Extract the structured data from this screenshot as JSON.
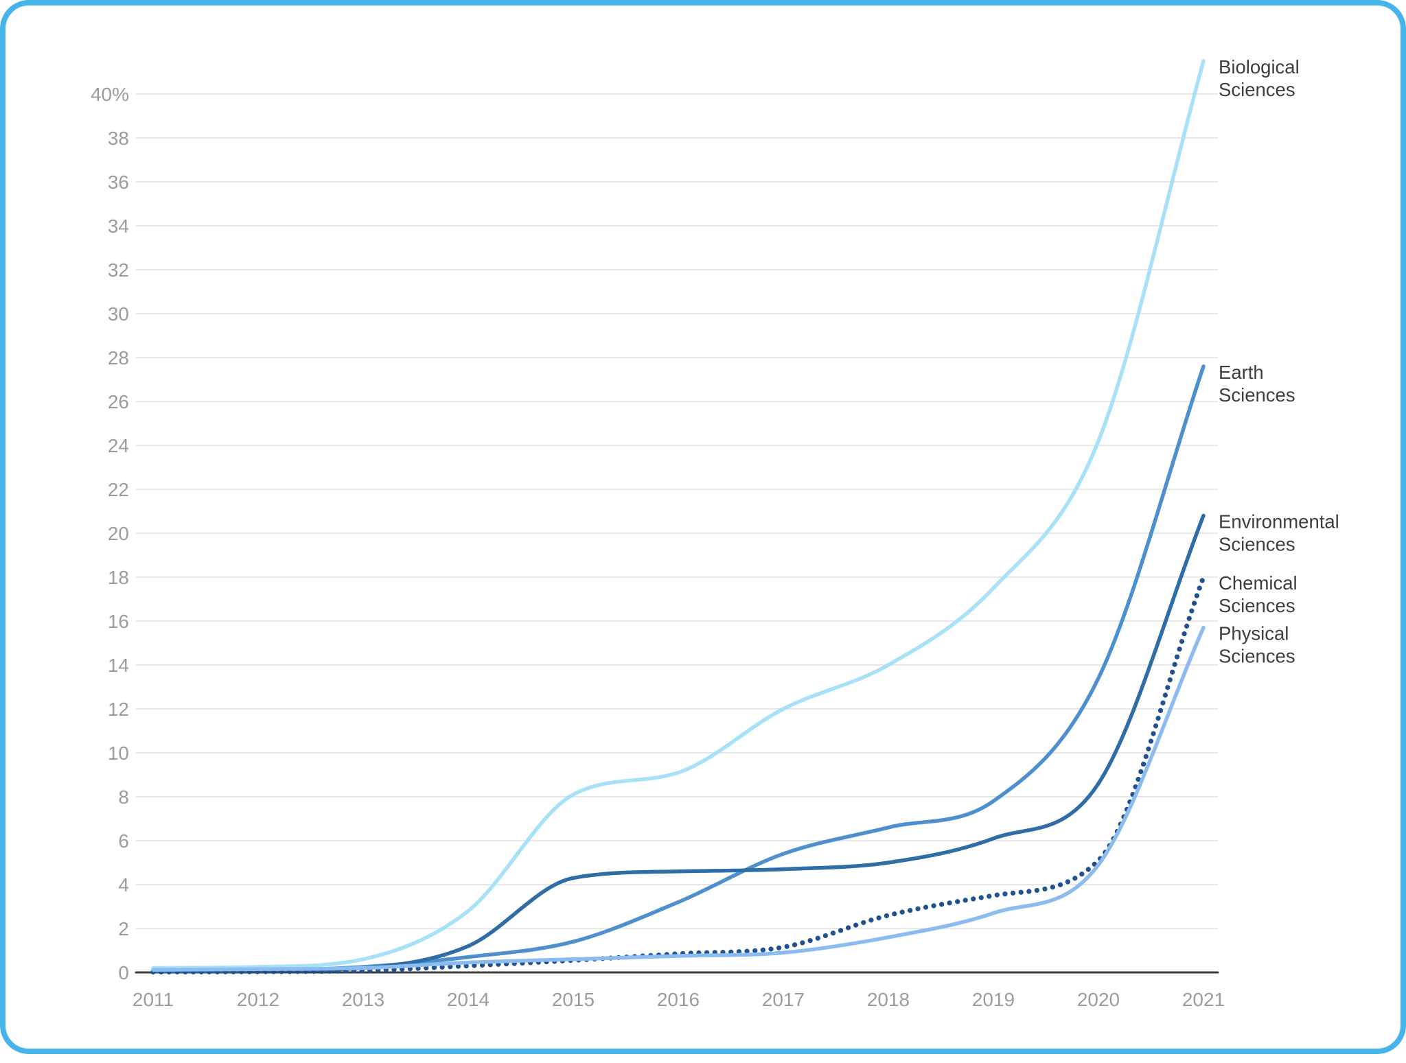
{
  "frame": {
    "border_color": "#46B4E7",
    "background": "#FFFFFF"
  },
  "chart_data": {
    "type": "line",
    "title": "",
    "x": [
      2011,
      2012,
      2013,
      2014,
      2015,
      2016,
      2017,
      2018,
      2019,
      2020,
      2021
    ],
    "x_axis": {
      "tick_labels": [
        "2011",
        "2012",
        "2013",
        "2014",
        "2015",
        "2016",
        "2017",
        "2018",
        "2019",
        "2020",
        "2021"
      ]
    },
    "y_axis": {
      "min": 0,
      "max": 40,
      "tick_step": 2,
      "unit": "%",
      "tick_labels": [
        "40%",
        "38",
        "36",
        "34",
        "32",
        "30",
        "28",
        "26",
        "24",
        "22",
        "20",
        "18",
        "16",
        "14",
        "12",
        "10",
        "8",
        "6",
        "4",
        "2",
        "0"
      ],
      "grid": true
    },
    "legend_position": "line-end-labels-right",
    "series": [
      {
        "name": "Biological Sciences",
        "label_lines": [
          "Biological",
          "Sciences"
        ],
        "color": "#A7E1F8",
        "style": "solid",
        "values": [
          0.2,
          0.25,
          0.6,
          2.8,
          8.1,
          9.1,
          12.0,
          14.0,
          17.5,
          24.2,
          41.5
        ]
      },
      {
        "name": "Earth Sciences",
        "label_lines": [
          "Earth",
          "Sciences"
        ],
        "color": "#4E90CE",
        "style": "solid",
        "values": [
          0.1,
          0.1,
          0.25,
          0.7,
          1.4,
          3.2,
          5.4,
          6.6,
          7.8,
          13.4,
          27.6
        ]
      },
      {
        "name": "Environmental Sciences",
        "label_lines": [
          "Environmental",
          "Sciences"
        ],
        "color": "#2E6DA6",
        "style": "solid",
        "values": [
          0.05,
          0.08,
          0.2,
          1.2,
          4.3,
          4.6,
          4.7,
          5.0,
          6.1,
          8.6,
          20.8
        ]
      },
      {
        "name": "Chemical Sciences",
        "label_lines": [
          "Chemical",
          "Sciences"
        ],
        "color": "#1F528E",
        "style": "dotted",
        "values": [
          0.02,
          0.03,
          0.08,
          0.3,
          0.55,
          0.85,
          1.15,
          2.6,
          3.5,
          5.1,
          18.0
        ]
      },
      {
        "name": "Physical Sciences",
        "label_lines": [
          "Physical",
          "Sciences"
        ],
        "color": "#8CBCEF",
        "style": "solid",
        "values": [
          0.12,
          0.15,
          0.2,
          0.45,
          0.6,
          0.75,
          0.9,
          1.6,
          2.7,
          4.9,
          15.7
        ]
      }
    ],
    "style": {
      "grid_color": "#E7E7E7",
      "axis_color": "#3B3B3B",
      "tick_label_color": "#9C9C9C",
      "series_label_color": "#3E3E3E"
    }
  }
}
